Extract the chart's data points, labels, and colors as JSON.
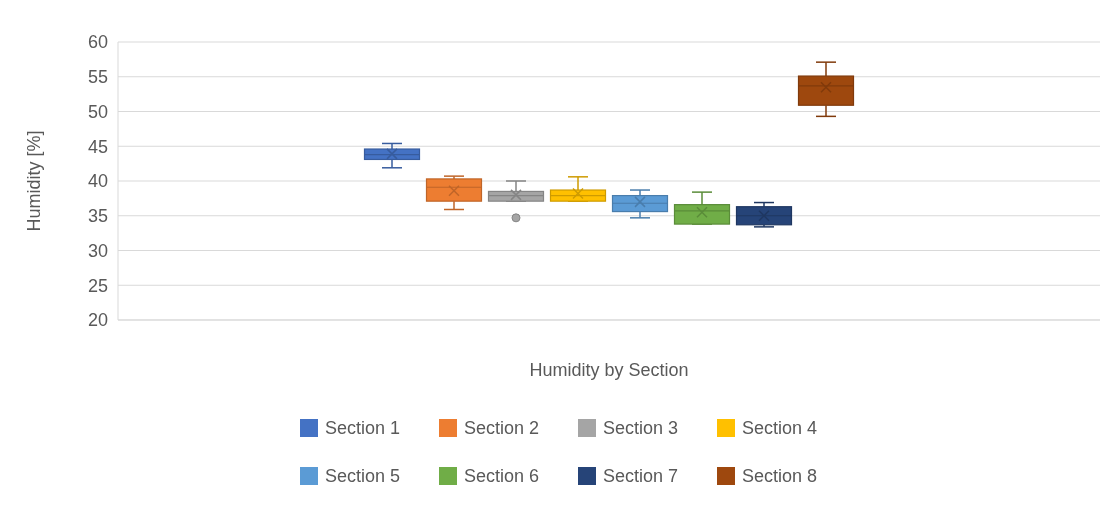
{
  "chart_data": {
    "type": "box",
    "ylabel": "Humidity [%]",
    "categories": [
      "Humidity by Section"
    ],
    "ylim": [
      20,
      60
    ],
    "yticks": [
      20,
      25,
      30,
      35,
      40,
      45,
      50,
      55,
      60
    ],
    "grid": "y",
    "legend": "bottom",
    "series": [
      {
        "name": "Section 1",
        "color": "#4472c4",
        "boxes": [
          {
            "low": 41.9,
            "q1": 43.1,
            "median": 43.8,
            "q3": 44.6,
            "high": 45.4,
            "mean": 43.9
          }
        ]
      },
      {
        "name": "Section 2",
        "color": "#ed7d31",
        "boxes": [
          {
            "low": 35.9,
            "q1": 37.1,
            "median": 39.1,
            "q3": 40.3,
            "high": 40.7,
            "mean": 38.6
          }
        ]
      },
      {
        "name": "Section 3",
        "color": "#a5a5a5",
        "boxes": [
          {
            "low": 37.1,
            "q1": 37.1,
            "median": 37.9,
            "q3": 38.5,
            "high": 40,
            "mean": 38,
            "outliers": [
              34.7
            ]
          }
        ]
      },
      {
        "name": "Section 4",
        "color": "#ffc000",
        "boxes": [
          {
            "low": 37.1,
            "q1": 37.1,
            "median": 37.9,
            "q3": 38.7,
            "high": 40.6,
            "mean": 38.2
          }
        ]
      },
      {
        "name": "Section 5",
        "color": "#5b9bd5",
        "boxes": [
          {
            "low": 34.7,
            "q1": 35.6,
            "median": 36.8,
            "q3": 37.9,
            "high": 38.7,
            "mean": 37
          }
        ]
      },
      {
        "name": "Section 6",
        "color": "#70ad47",
        "boxes": [
          {
            "low": 33.8,
            "q1": 33.8,
            "median": 35.7,
            "q3": 36.6,
            "high": 38.4,
            "mean": 35.5
          }
        ]
      },
      {
        "name": "Section 7",
        "color": "#264478",
        "boxes": [
          {
            "low": 33.4,
            "q1": 33.7,
            "median": 35,
            "q3": 36.3,
            "high": 36.9,
            "mean": 35
          }
        ]
      },
      {
        "name": "Section 8",
        "color": "#9e480e",
        "boxes": [
          {
            "low": 49.3,
            "q1": 50.9,
            "median": 53.7,
            "q3": 55.1,
            "high": 57.1,
            "mean": 53.5
          }
        ]
      }
    ]
  }
}
